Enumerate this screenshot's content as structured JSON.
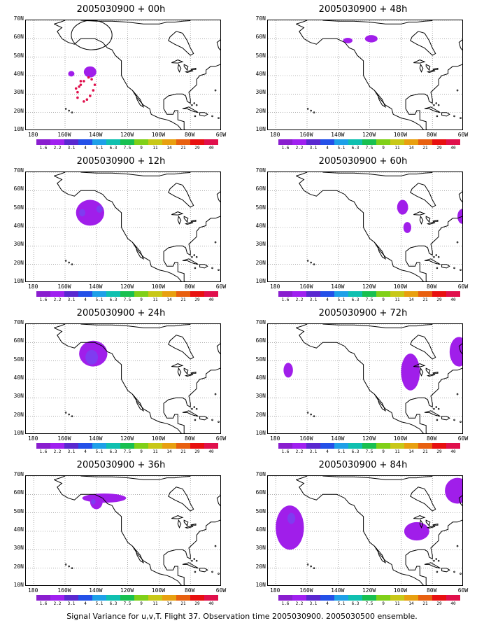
{
  "caption": "Signal Variance for u,v,T. Flight 37. Observation time 2005030900. 2005030500 ensemble.",
  "y_ticks": [
    "10N",
    "20N",
    "30N",
    "40N",
    "50N",
    "60N",
    "70N"
  ],
  "x_ticks": [
    "180",
    "160W",
    "140W",
    "120W",
    "100W",
    "80W",
    "60W"
  ],
  "colorbar": {
    "colors": [
      "#8a1ecf",
      "#a020f0",
      "#5a28d0",
      "#2450e8",
      "#1ea0e8",
      "#10c0b0",
      "#18c050",
      "#80d018",
      "#c8c818",
      "#e8a010",
      "#e86010",
      "#e81010",
      "#e0104c"
    ],
    "labels": [
      "1.6",
      "2.2",
      "3.1",
      "4",
      "5.1",
      "6.3",
      "7.5",
      "9",
      "11",
      "14",
      "21",
      "29",
      "40"
    ]
  },
  "panels": [
    {
      "title": "2005030900 + 00h",
      "blobs": [
        {
          "lon": -144,
          "lat": 42,
          "rx": 4,
          "ry": 3,
          "level": 0
        },
        {
          "lon": -156,
          "lat": 41,
          "rx": 2,
          "ry": 1.5,
          "level": 0
        }
      ],
      "dots": [
        [
          -150,
          37
        ],
        [
          -151,
          34
        ],
        [
          -152,
          31
        ],
        [
          -152,
          28
        ],
        [
          -148,
          26
        ],
        [
          -146,
          27
        ],
        [
          -144,
          29
        ],
        [
          -142,
          32
        ],
        [
          -141,
          35
        ],
        [
          -143,
          38
        ],
        [
          -145,
          39
        ],
        [
          -148,
          37
        ],
        [
          -150,
          35
        ],
        [
          -153,
          33
        ]
      ],
      "ellipse": {
        "lon": -143,
        "lat": 62,
        "rx": 13,
        "ry": 8
      }
    },
    {
      "title": "2005030900 + 48h",
      "blobs": [
        {
          "lon": -134,
          "lat": 59,
          "rx": 3,
          "ry": 1.5,
          "level": 0
        },
        {
          "lon": -119,
          "lat": 60,
          "rx": 4,
          "ry": 2,
          "level": 0
        }
      ],
      "dots": [],
      "ellipse": null
    },
    {
      "title": "2005030900 + 12h",
      "blobs": [
        {
          "lon": -144,
          "lat": 48,
          "rx": 9,
          "ry": 7,
          "level": 0
        },
        {
          "lon": -149,
          "lat": 48,
          "rx": 2,
          "ry": 2,
          "level": 1
        },
        {
          "lon": -138,
          "lat": 50,
          "rx": 2,
          "ry": 2,
          "level": 1
        }
      ],
      "dots": [],
      "ellipse": null
    },
    {
      "title": "2005030900 + 60h",
      "blobs": [
        {
          "lon": -99,
          "lat": 51,
          "rx": 3.5,
          "ry": 4,
          "level": 0
        },
        {
          "lon": -96,
          "lat": 40,
          "rx": 2.5,
          "ry": 3,
          "level": 0
        },
        {
          "lon": -61,
          "lat": 46,
          "rx": 3,
          "ry": 4,
          "level": 0
        }
      ],
      "dots": [],
      "ellipse": null
    },
    {
      "title": "2005030900 + 24h",
      "blobs": [
        {
          "lon": -142,
          "lat": 54,
          "rx": 9,
          "ry": 7,
          "level": 0
        },
        {
          "lon": -143,
          "lat": 52,
          "rx": 4,
          "ry": 4,
          "level": 1
        }
      ],
      "dots": [],
      "ellipse": null
    },
    {
      "title": "2005030900 + 72h",
      "blobs": [
        {
          "lon": -172,
          "lat": 45,
          "rx": 3,
          "ry": 4,
          "level": 0
        },
        {
          "lon": -94,
          "lat": 44,
          "rx": 6,
          "ry": 10,
          "level": 0
        },
        {
          "lon": -63,
          "lat": 55,
          "rx": 6,
          "ry": 8,
          "level": 0
        }
      ],
      "dots": [],
      "ellipse": null
    },
    {
      "title": "2005030900 + 36h",
      "blobs": [
        {
          "lon": -135,
          "lat": 58,
          "rx": 14,
          "ry": 2.5,
          "level": 0
        },
        {
          "lon": -140,
          "lat": 56,
          "rx": 4,
          "ry": 4,
          "level": 0
        },
        {
          "lon": -142,
          "lat": 56,
          "rx": 1.5,
          "ry": 1.5,
          "level": 1
        }
      ],
      "dots": [],
      "ellipse": null
    },
    {
      "title": "2005030900 + 84h",
      "blobs": [
        {
          "lon": -171,
          "lat": 42,
          "rx": 9,
          "ry": 12,
          "level": 0
        },
        {
          "lon": -170,
          "lat": 47,
          "rx": 2.5,
          "ry": 3,
          "level": 1
        },
        {
          "lon": -90,
          "lat": 40,
          "rx": 8,
          "ry": 5,
          "level": 0
        },
        {
          "lon": -64,
          "lat": 62,
          "rx": 8,
          "ry": 7,
          "level": 0
        }
      ],
      "dots": [],
      "ellipse": null
    }
  ]
}
